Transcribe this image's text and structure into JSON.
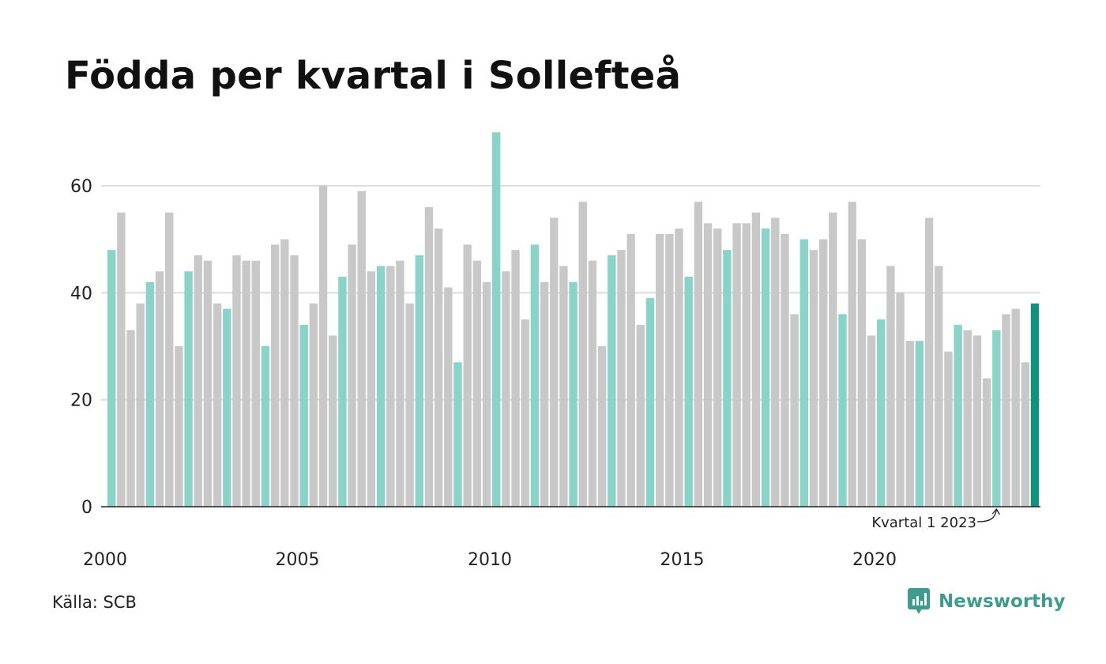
{
  "chart_data": {
    "type": "bar",
    "title": "Födda per kvartal i Sollefteå",
    "xlabel": "",
    "ylabel": "",
    "ylim": [
      0,
      70
    ],
    "y_ticks": [
      0,
      20,
      40,
      60
    ],
    "x_tick_labels": [
      "2000",
      "2005",
      "2010",
      "2015",
      "2020"
    ],
    "grid": true,
    "colors": {
      "q1": "#8ad3c9",
      "other": "#c8c8c8",
      "latest": "#12917f",
      "grid": "#dddddd",
      "axis": "#222222"
    },
    "series": [
      {
        "values": [
          48,
          55,
          33,
          38,
          42,
          44,
          55,
          30,
          44,
          47,
          46,
          38,
          37,
          47,
          46,
          46,
          30,
          49,
          50,
          47,
          34,
          38,
          60,
          32,
          43,
          49,
          59,
          44,
          45,
          45,
          46,
          38,
          47,
          56,
          52,
          41,
          27,
          49,
          46,
          42,
          70,
          44,
          48,
          35,
          49,
          42,
          54,
          45,
          42,
          57,
          46,
          30,
          47,
          48,
          51,
          34,
          39,
          51,
          51,
          52,
          43,
          57,
          53,
          52,
          48,
          53,
          53,
          55,
          52,
          54,
          51,
          36,
          50,
          48,
          50,
          55,
          36,
          57,
          50,
          32,
          35,
          45,
          40,
          31,
          31,
          54,
          45,
          29,
          34,
          33,
          32,
          24,
          33,
          36,
          37,
          27,
          38
        ]
      }
    ],
    "annotation": {
      "text": "Kvartal 1 2023"
    }
  },
  "source": "Källa: SCB",
  "brand": {
    "name": "Newsworthy",
    "icon": "bar-chart-speech-icon"
  }
}
